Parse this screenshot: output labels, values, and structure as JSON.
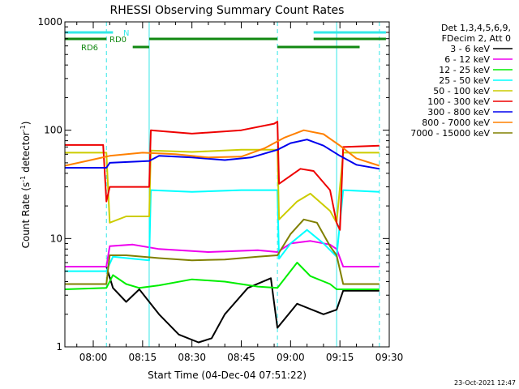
{
  "chart_data": {
    "type": "line",
    "title": "RHESSI Observing Summary Count Rates",
    "xlabel": "Start Time (04-Dec-04 07:51:22)",
    "ylabel_main": "Count Rate (s",
    "ylabel_sup1": "-1",
    "ylabel_mid": " detector",
    "ylabel_sup2": "-1",
    "ylabel_end": ")",
    "yscale": "log",
    "ylim": [
      1,
      1000
    ],
    "xlim": [
      "07:51:22",
      "09:30:00"
    ],
    "y_ticks": [
      "1",
      "10",
      "100",
      "1000"
    ],
    "x_ticks": [
      "08:00",
      "08:15",
      "08:30",
      "08:45",
      "09:00",
      "09:15",
      "09:30"
    ],
    "timestamp": "23-Oct-2021 12:47",
    "legend_header": [
      "Det 1,3,4,5,6,9,",
      "FDecim 2, Att 0"
    ],
    "flag_labels": {
      "n": "N",
      "rd0": "RD0",
      "rd6": "RD6"
    },
    "flag_colors": {
      "n": "#33e8e8",
      "rd": "#118811"
    },
    "flags": {
      "n": [
        [
          "07:51:22",
          "08:06:00"
        ],
        [
          "09:07:00",
          "09:29:00"
        ]
      ],
      "rd0": [
        [
          "07:51:22",
          "08:04:00"
        ],
        [
          "08:17:00",
          "08:56:00"
        ],
        [
          "09:07:00",
          "09:29:00"
        ]
      ],
      "rd6": [
        [
          "08:12:00",
          "08:17:00"
        ],
        [
          "08:56:00",
          "09:21:00"
        ]
      ]
    },
    "night_boundaries": [
      "07:51:22",
      "08:04:00",
      "08:17:00",
      "08:56:00",
      "09:14:00",
      "09:27:00"
    ],
    "series": [
      {
        "name": "3 - 6 keV",
        "color": "#000000",
        "points": [
          [
            "07:51:22",
            5.5
          ],
          [
            "08:04:00",
            5.5
          ],
          [
            "08:06:00",
            3.5
          ],
          [
            "08:10:00",
            2.6
          ],
          [
            "08:14:00",
            3.4
          ],
          [
            "08:20:00",
            2.0
          ],
          [
            "08:26:00",
            1.3
          ],
          [
            "08:32:00",
            1.1
          ],
          [
            "08:36:00",
            1.2
          ],
          [
            "08:40:00",
            2.0
          ],
          [
            "08:47:00",
            3.5
          ],
          [
            "08:54:00",
            4.3
          ],
          [
            "08:56:00",
            1.5
          ],
          [
            "09:02:00",
            2.5
          ],
          [
            "09:10:00",
            2.0
          ],
          [
            "09:14:00",
            2.2
          ],
          [
            "09:16:00",
            3.3
          ],
          [
            "09:27:00",
            3.3
          ]
        ]
      },
      {
        "name": "6 - 12 keV",
        "color": "#ee00ee",
        "points": [
          [
            "07:51:22",
            5.5
          ],
          [
            "08:04:00",
            5.5
          ],
          [
            "08:05:00",
            8.5
          ],
          [
            "08:12:00",
            8.8
          ],
          [
            "08:20:00",
            8.0
          ],
          [
            "08:35:00",
            7.5
          ],
          [
            "08:50:00",
            7.8
          ],
          [
            "08:56:00",
            7.5
          ],
          [
            "09:00:00",
            9.0
          ],
          [
            "09:06:00",
            9.5
          ],
          [
            "09:12:00",
            8.8
          ],
          [
            "09:14:00",
            8.0
          ],
          [
            "09:16:00",
            5.5
          ],
          [
            "09:27:00",
            5.5
          ]
        ]
      },
      {
        "name": "12 - 25 keV",
        "color": "#00ee00",
        "points": [
          [
            "07:51:22",
            3.4
          ],
          [
            "08:04:00",
            3.5
          ],
          [
            "08:06:00",
            4.6
          ],
          [
            "08:10:00",
            3.8
          ],
          [
            "08:14:00",
            3.5
          ],
          [
            "08:20:00",
            3.7
          ],
          [
            "08:30:00",
            4.2
          ],
          [
            "08:40:00",
            4.0
          ],
          [
            "08:50:00",
            3.6
          ],
          [
            "08:56:00",
            3.5
          ],
          [
            "09:02:00",
            6.0
          ],
          [
            "09:06:00",
            4.5
          ],
          [
            "09:12:00",
            3.8
          ],
          [
            "09:14:00",
            3.4
          ],
          [
            "09:27:00",
            3.4
          ]
        ]
      },
      {
        "name": "25 - 50 keV",
        "color": "#00ffff",
        "points": [
          [
            "07:51:22",
            5.0
          ],
          [
            "08:04:00",
            5.0
          ],
          [
            "08:06:00",
            6.8
          ],
          [
            "08:12:00",
            6.5
          ],
          [
            "08:17:00",
            6.3
          ],
          [
            "08:17:30",
            28
          ],
          [
            "08:30:00",
            27
          ],
          [
            "08:45:00",
            28
          ],
          [
            "08:56:00",
            28
          ],
          [
            "08:56:30",
            6.5
          ],
          [
            "09:00:00",
            9.0
          ],
          [
            "09:05:00",
            12
          ],
          [
            "09:10:00",
            9.0
          ],
          [
            "09:14:00",
            6.8
          ],
          [
            "09:16:00",
            28
          ],
          [
            "09:27:00",
            27
          ]
        ]
      },
      {
        "name": "50 - 100 keV",
        "color": "#cccc00",
        "points": [
          [
            "07:51:22",
            62
          ],
          [
            "08:04:00",
            62
          ],
          [
            "08:05:00",
            14
          ],
          [
            "08:10:00",
            16
          ],
          [
            "08:17:00",
            16
          ],
          [
            "08:17:30",
            65
          ],
          [
            "08:30:00",
            63
          ],
          [
            "08:45:00",
            66
          ],
          [
            "08:56:00",
            66
          ],
          [
            "08:56:30",
            15
          ],
          [
            "09:02:00",
            22
          ],
          [
            "09:06:00",
            26
          ],
          [
            "09:12:00",
            18
          ],
          [
            "09:14:00",
            14
          ],
          [
            "09:16:00",
            62
          ],
          [
            "09:27:00",
            62
          ]
        ]
      },
      {
        "name": "100 - 300 keV",
        "color": "#ee0000",
        "points": [
          [
            "07:51:22",
            73
          ],
          [
            "08:03:00",
            73
          ],
          [
            "08:04:00",
            22
          ],
          [
            "08:05:00",
            30
          ],
          [
            "08:17:00",
            30
          ],
          [
            "08:17:30",
            100
          ],
          [
            "08:30:00",
            93
          ],
          [
            "08:45:00",
            100
          ],
          [
            "08:55:00",
            115
          ],
          [
            "08:56:00",
            120
          ],
          [
            "08:56:30",
            32
          ],
          [
            "09:03:00",
            44
          ],
          [
            "09:07:00",
            42
          ],
          [
            "09:12:00",
            28
          ],
          [
            "09:14:00",
            14
          ],
          [
            "09:15:00",
            12
          ],
          [
            "09:16:00",
            70
          ],
          [
            "09:27:00",
            72
          ]
        ]
      },
      {
        "name": "300 - 800 keV",
        "color": "#0000ee",
        "points": [
          [
            "07:51:22",
            45
          ],
          [
            "08:04:00",
            45
          ],
          [
            "08:05:00",
            50
          ],
          [
            "08:17:00",
            52
          ],
          [
            "08:20:00",
            58
          ],
          [
            "08:30:00",
            56
          ],
          [
            "08:40:00",
            53
          ],
          [
            "08:48:00",
            56
          ],
          [
            "08:56:00",
            66
          ],
          [
            "09:00:00",
            76
          ],
          [
            "09:05:00",
            82
          ],
          [
            "09:10:00",
            72
          ],
          [
            "09:15:00",
            58
          ],
          [
            "09:20:00",
            48
          ],
          [
            "09:27:00",
            44
          ]
        ]
      },
      {
        "name": "800 - 7000 keV",
        "color": "#ff8000",
        "points": [
          [
            "07:51:22",
            47
          ],
          [
            "07:58:00",
            52
          ],
          [
            "08:05:00",
            58
          ],
          [
            "08:15:00",
            62
          ],
          [
            "08:25:00",
            60
          ],
          [
            "08:35:00",
            56
          ],
          [
            "08:45:00",
            57
          ],
          [
            "08:52:00",
            68
          ],
          [
            "08:58:00",
            85
          ],
          [
            "09:04:00",
            100
          ],
          [
            "09:10:00",
            92
          ],
          [
            "09:15:00",
            72
          ],
          [
            "09:20:00",
            55
          ],
          [
            "09:27:00",
            47
          ]
        ]
      },
      {
        "name": "7000 - 15000 keV",
        "color": "#808000",
        "points": [
          [
            "07:51:22",
            3.8
          ],
          [
            "08:04:00",
            3.8
          ],
          [
            "08:05:00",
            7.0
          ],
          [
            "08:10:00",
            7.0
          ],
          [
            "08:20:00",
            6.6
          ],
          [
            "08:30:00",
            6.3
          ],
          [
            "08:40:00",
            6.4
          ],
          [
            "08:50:00",
            6.8
          ],
          [
            "08:56:00",
            7.0
          ],
          [
            "09:00:00",
            11
          ],
          [
            "09:04:00",
            15
          ],
          [
            "09:08:00",
            14
          ],
          [
            "09:12:00",
            8.5
          ],
          [
            "09:14:00",
            7.0
          ],
          [
            "09:16:00",
            3.8
          ],
          [
            "09:27:00",
            3.8
          ]
        ]
      }
    ]
  }
}
